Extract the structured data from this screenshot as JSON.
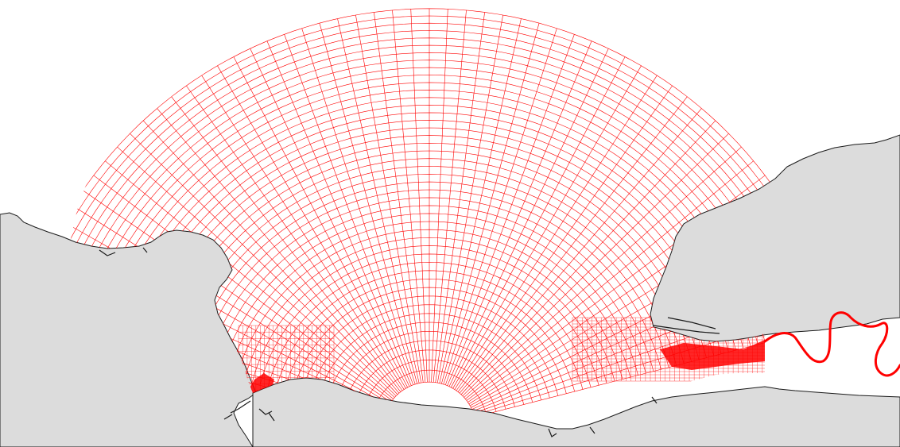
{
  "map": {
    "colors": {
      "background": "#ffffff",
      "land": "#dcdcdc",
      "coastline": "#1a1a1a",
      "mesh": "#ff0000",
      "mesh_dense": "#ff1a1a"
    },
    "layers": [
      "land",
      "coastline",
      "computational-mesh",
      "river-channel"
    ]
  }
}
